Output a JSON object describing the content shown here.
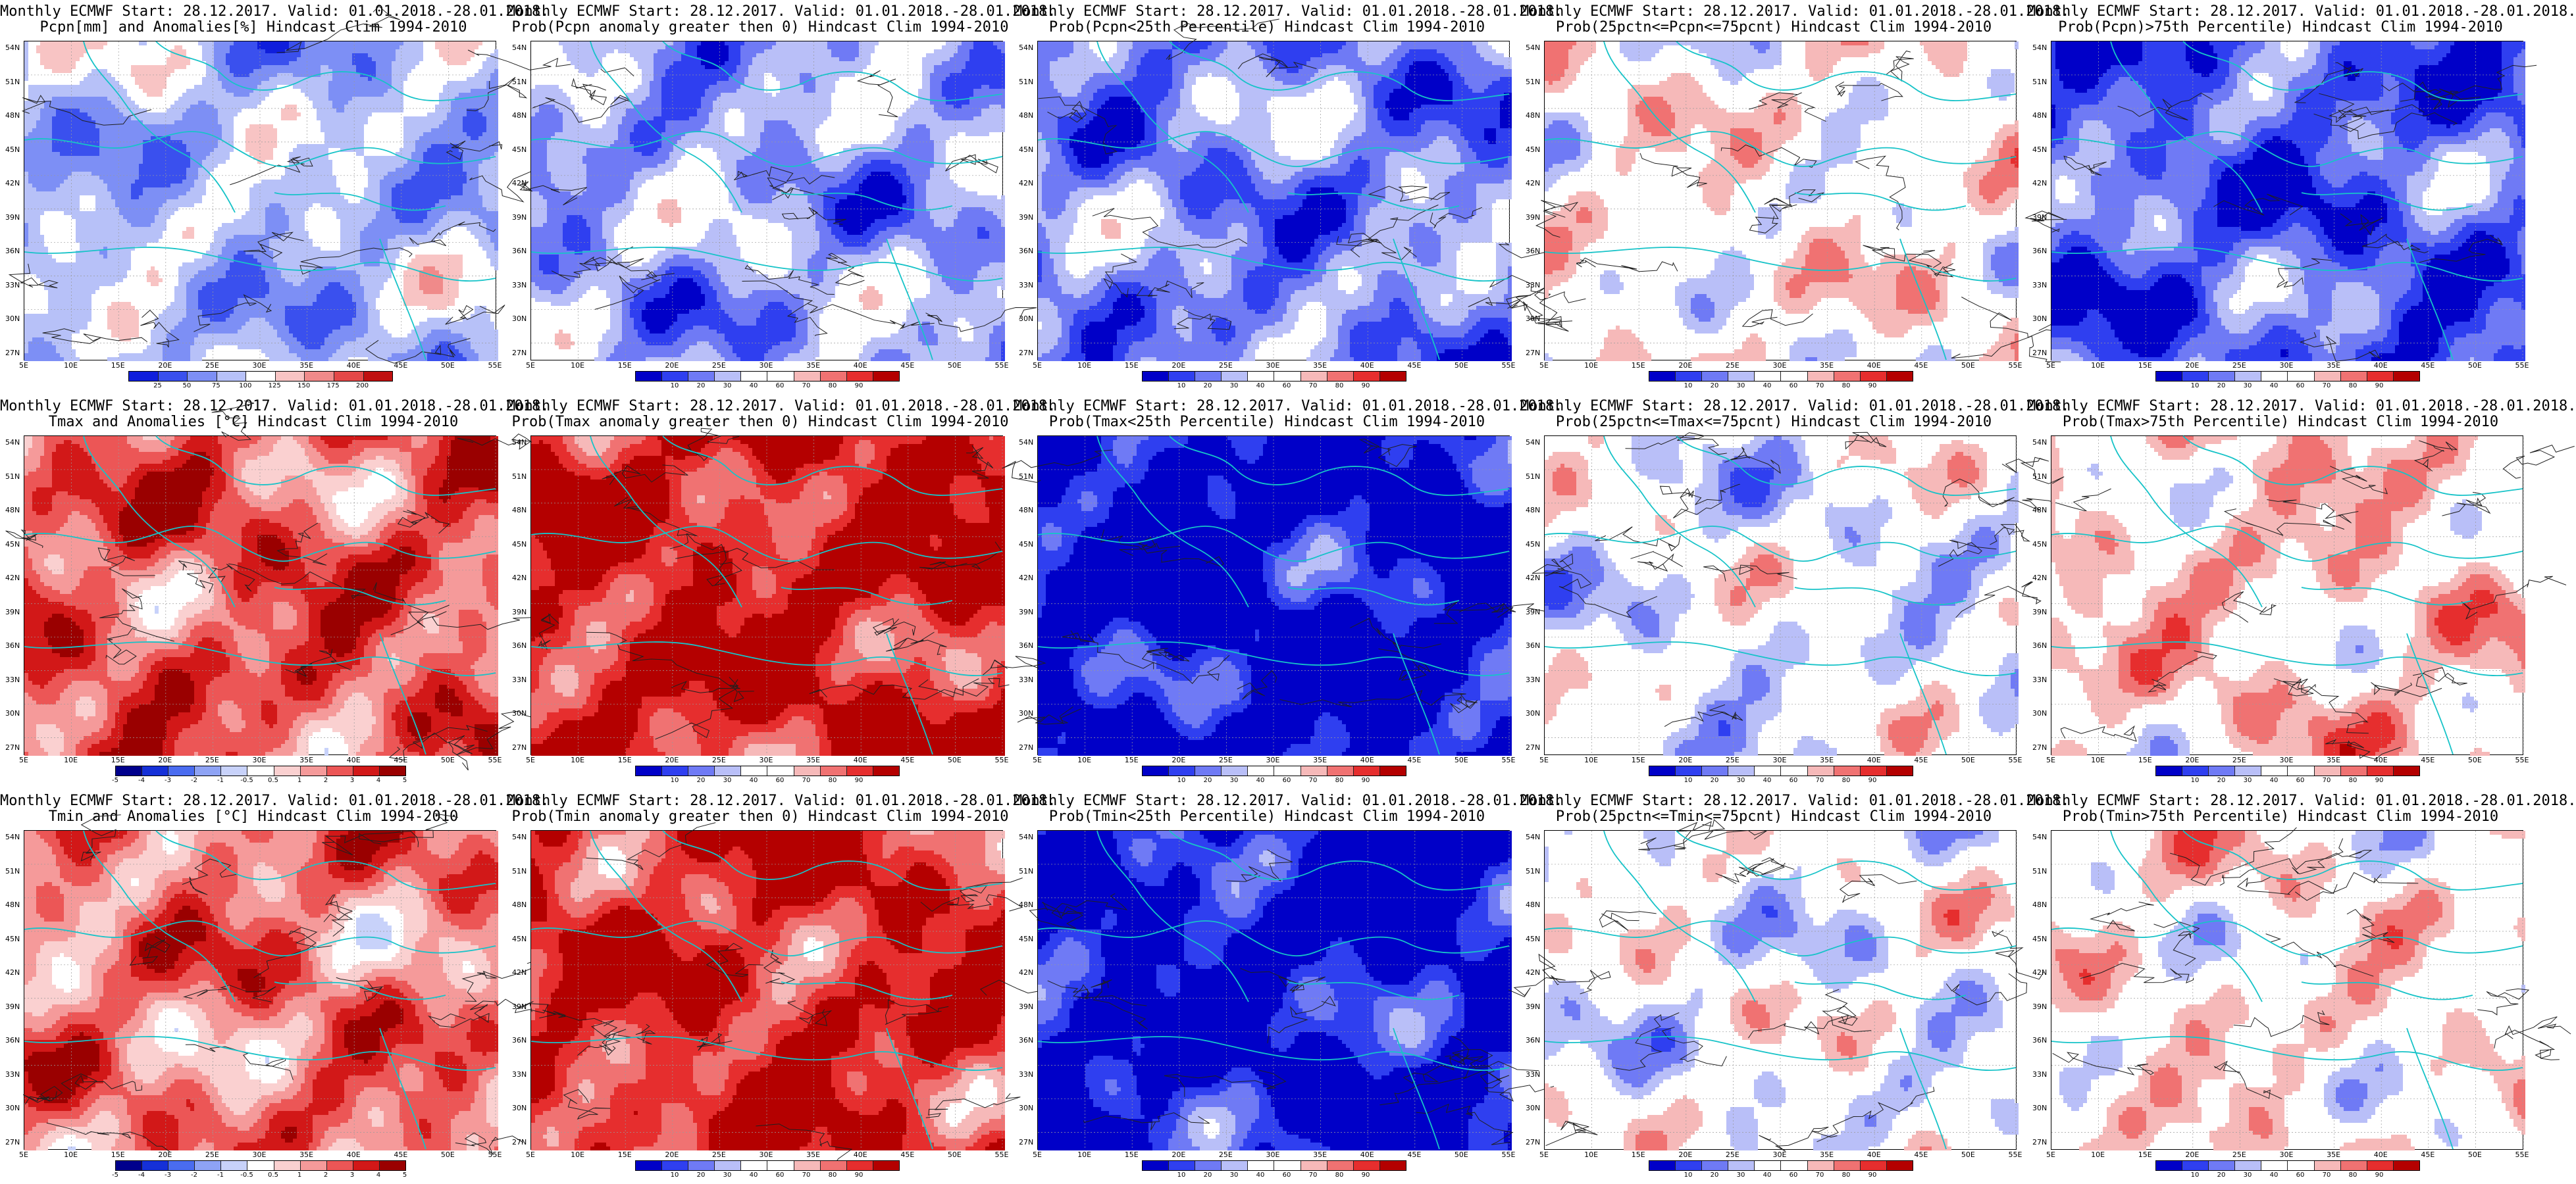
{
  "panels": [
    {
      "row": 0,
      "col": 0,
      "line1": "Monthly ECMWF Start: 28.12.2017. Valid: 01.01.2018.-28.01.2018.",
      "line2": "Pcpn[mm] and Anomalies[%] Hindcast Clim 1994-2010",
      "palette": "precip",
      "bias": -0.25,
      "ticks": [
        "25",
        "50",
        "75",
        "100",
        "125",
        "150",
        "175",
        "200"
      ]
    },
    {
      "row": 0,
      "col": 1,
      "line1": "Monthly ECMWF Start: 28.12.2017. Valid: 01.01.2018.-28.01.2018.",
      "line2": "Prob(Pcpn anomaly greater then 0) Hindcast Clim 1994-2010",
      "palette": "prob",
      "bias": -0.35,
      "ticks": [
        "10",
        "20",
        "30",
        "40",
        "60",
        "70",
        "80",
        "90"
      ]
    },
    {
      "row": 0,
      "col": 2,
      "line1": "Monthly ECMWF Start: 28.12.2017. Valid: 01.01.2018.-28.01.2018.",
      "line2": "Prob(Pcpn<25th Percentile) Hindcast Clim 1994-2010",
      "palette": "prob",
      "bias": -0.45,
      "ticks": [
        "10",
        "20",
        "30",
        "40",
        "60",
        "70",
        "80",
        "90"
      ]
    },
    {
      "row": 0,
      "col": 3,
      "line1": "Monthly ECMWF Start: 28.12.2017. Valid: 01.01.2018.-28.01.2018.",
      "line2": "Prob(25pctn<=Pcpn<=75pcnt) Hindcast Clim 1994-2010",
      "palette": "prob",
      "bias": 0.05,
      "ticks": [
        "10",
        "20",
        "30",
        "40",
        "60",
        "70",
        "80",
        "90"
      ]
    },
    {
      "row": 0,
      "col": 4,
      "line1": "Monthly ECMWF Start: 28.12.2017. Valid: 01.01.2018.-28.01.2018.",
      "line2": "Prob(Pcpn)>75th Percentile) Hindcast Clim 1994-2010",
      "palette": "prob",
      "bias": -0.6,
      "ticks": [
        "10",
        "20",
        "30",
        "40",
        "60",
        "70",
        "80",
        "90"
      ]
    },
    {
      "row": 1,
      "col": 0,
      "line1": "Monthly ECMWF Start: 28.12.2017. Valid: 01.01.2018.-28.01.2018.",
      "line2": "Tmax and Anomalies [°C] Hindcast Clim 1994-2010",
      "palette": "anom",
      "bias": 0.55,
      "ticks": [
        "-5",
        "-4",
        "-3",
        "-2",
        "-1",
        "-0.5",
        "0.5",
        "1",
        "2",
        "3",
        "4",
        "5"
      ]
    },
    {
      "row": 1,
      "col": 1,
      "line1": "Monthly ECMWF Start: 28.12.2017. Valid: 01.01.2018.-28.01.2018.",
      "line2": "Prob(Tmax anomaly greater then 0) Hindcast Clim 1994-2010",
      "palette": "prob",
      "bias": 0.8,
      "ticks": [
        "10",
        "20",
        "30",
        "40",
        "60",
        "70",
        "80",
        "90"
      ]
    },
    {
      "row": 1,
      "col": 2,
      "line1": "Monthly ECMWF Start: 28.12.2017. Valid: 01.01.2018.-28.01.2018.",
      "line2": "Prob(Tmax<25th Percentile) Hindcast Clim 1994-2010",
      "palette": "prob",
      "bias": -0.92,
      "ticks": [
        "10",
        "20",
        "30",
        "40",
        "60",
        "70",
        "80",
        "90"
      ]
    },
    {
      "row": 1,
      "col": 3,
      "line1": "Monthly ECMWF Start: 28.12.2017. Valid: 01.01.2018.-28.01.2018.",
      "line2": "Prob(25pctn<=Tmax<=75pcnt) Hindcast Clim 1994-2010",
      "palette": "prob",
      "bias": -0.1,
      "ticks": [
        "10",
        "20",
        "30",
        "40",
        "60",
        "70",
        "80",
        "90"
      ]
    },
    {
      "row": 1,
      "col": 4,
      "line1": "Monthly ECMWF Start: 28.12.2017. Valid: 01.01.2018.-28.01.2018.",
      "line2": "Prob(Tmax>75th Percentile) Hindcast Clim 1994-2010",
      "palette": "prob",
      "bias": 0.2,
      "ticks": [
        "10",
        "20",
        "30",
        "40",
        "60",
        "70",
        "80",
        "90"
      ]
    },
    {
      "row": 2,
      "col": 0,
      "line1": "Monthly ECMWF Start: 28.12.2017. Valid: 01.01.2018.-28.01.2018.",
      "line2": "Tmin and Anomalies [°C] Hindcast Clim 1994-2010",
      "palette": "anom",
      "bias": 0.45,
      "ticks": [
        "-5",
        "-4",
        "-3",
        "-2",
        "-1",
        "-0.5",
        "0.5",
        "1",
        "2",
        "3",
        "4",
        "5"
      ]
    },
    {
      "row": 2,
      "col": 1,
      "line1": "Monthly ECMWF Start: 28.12.2017. Valid: 01.01.2018.-28.01.2018.",
      "line2": "Prob(Tmin anomaly greater then 0) Hindcast Clim 1994-2010",
      "palette": "prob",
      "bias": 0.75,
      "ticks": [
        "10",
        "20",
        "30",
        "40",
        "60",
        "70",
        "80",
        "90"
      ]
    },
    {
      "row": 2,
      "col": 2,
      "line1": "Monthly ECMWF Start: 28.12.2017. Valid: 01.01.2018.-28.01.2018.",
      "line2": "Prob(Tmin<25th Percentile) Hindcast Clim 1994-2010",
      "palette": "prob",
      "bias": -0.88,
      "ticks": [
        "10",
        "20",
        "30",
        "40",
        "60",
        "70",
        "80",
        "90"
      ]
    },
    {
      "row": 2,
      "col": 3,
      "line1": "Monthly ECMWF Start: 28.12.2017. Valid: 01.01.2018.-28.01.2018.",
      "line2": "Prob(25pctn<=Tmin<=75pcnt) Hindcast Clim 1994-2010",
      "palette": "prob",
      "bias": -0.05,
      "ticks": [
        "10",
        "20",
        "30",
        "40",
        "60",
        "70",
        "80",
        "90"
      ]
    },
    {
      "row": 2,
      "col": 4,
      "line1": "Monthly ECMWF Start: 28.12.2017. Valid: 01.01.2018.-28.01.2018.",
      "line2": "Prob(Tmin>75th Percentile) Hindcast Clim 1994-2010",
      "palette": "prob",
      "bias": 0.1,
      "ticks": [
        "10",
        "20",
        "30",
        "40",
        "60",
        "70",
        "80",
        "90"
      ]
    }
  ],
  "lat_labels": [
    "54N",
    "51N",
    "48N",
    "45N",
    "42N",
    "39N",
    "36N",
    "33N",
    "30N",
    "27N"
  ],
  "lon_labels": [
    "5E",
    "10E",
    "15E",
    "20E",
    "25E",
    "30E",
    "35E",
    "40E",
    "45E",
    "50E",
    "55E"
  ],
  "palettes": {
    "prob": [
      "#0000c8",
      "#2f3ff0",
      "#6f7af5",
      "#b9bff8",
      "#ffffff",
      "#ffffff",
      "#f6b9b9",
      "#f07272",
      "#e62e2e",
      "#b40000"
    ],
    "anom": [
      "#00008c",
      "#1530d8",
      "#4a6cf0",
      "#8ea3f5",
      "#c8d2fa",
      "#ffffff",
      "#fad0d0",
      "#f59a9a",
      "#ec5656",
      "#d21818",
      "#9a0000"
    ],
    "precip": [
      "#0f1edc",
      "#3a50ee",
      "#7d8ff5",
      "#b7c1f8",
      "#ffffff",
      "#f8c4c4",
      "#f08a8a",
      "#e44848",
      "#c01010"
    ]
  },
  "colors": {
    "coast": "#17c3c8",
    "contour": "#202020",
    "grid": "#9a9a9a"
  }
}
